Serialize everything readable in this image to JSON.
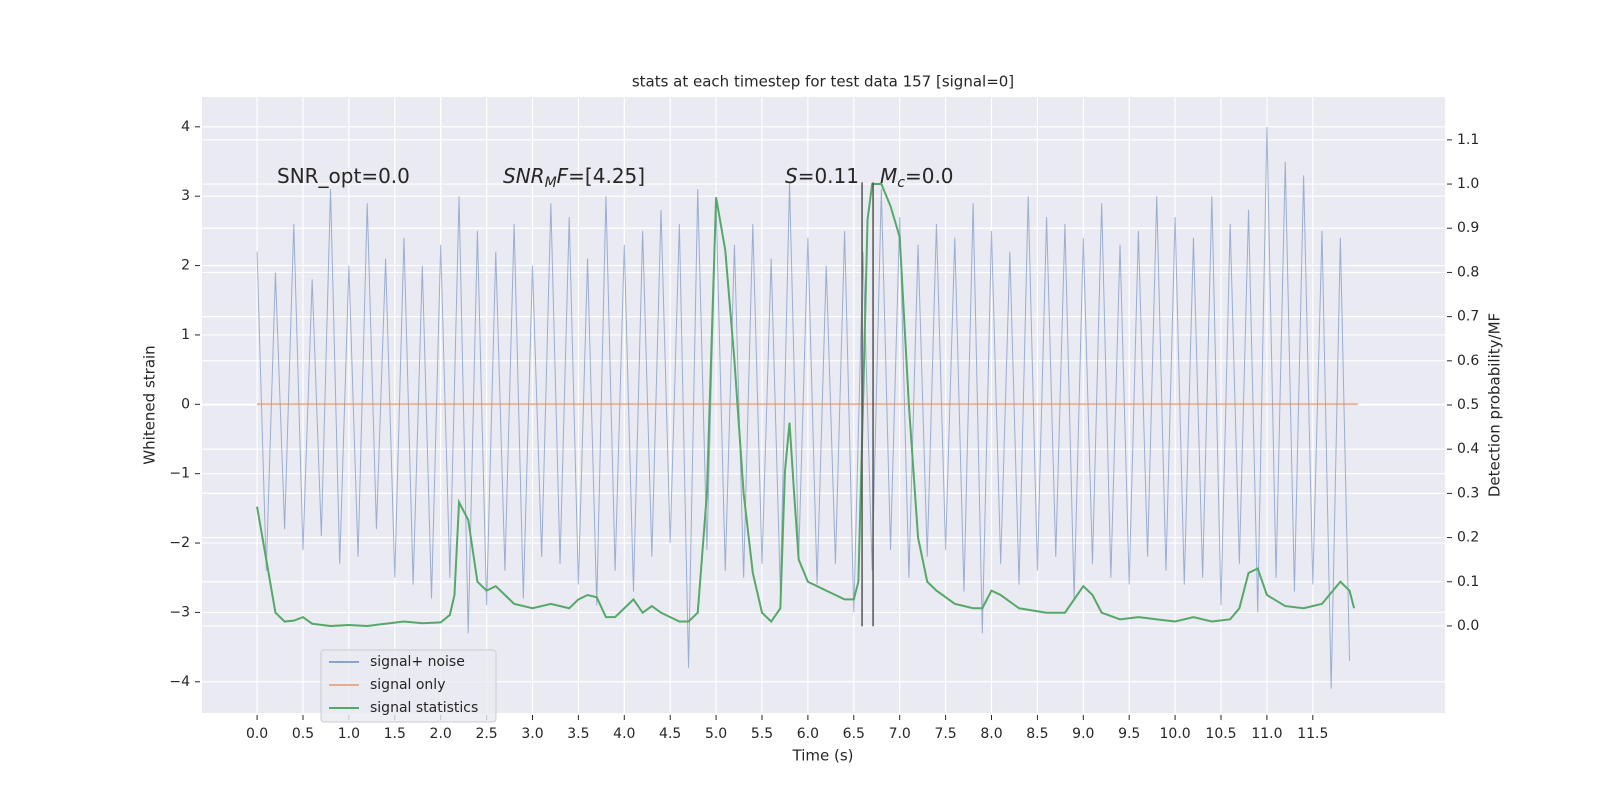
{
  "chart_data": {
    "type": "line",
    "title": "stats at each timestep for test data 157 [signal=0]",
    "xlabel": "Time (s)",
    "ylabel": "Whitened strain",
    "y2label": "Detection probability/MF",
    "annotations": [
      [
        "SNR_opt=0.0"
      ],
      [
        "SNR",
        "M",
        "F",
        "=[4.25]"
      ],
      [
        "S",
        "=0.11"
      ],
      [
        "M",
        "c",
        "=0.0"
      ]
    ],
    "xlim": [
      -0.6,
      12.94
    ],
    "ylim": [
      -4.45,
      4.43
    ],
    "y2lim": [
      -0.197,
      1.197
    ],
    "xticks": [
      {
        "value": 0,
        "label": "0.0"
      },
      {
        "value": 0.5,
        "label": "0.5"
      },
      {
        "value": 1,
        "label": "1.0"
      },
      {
        "value": 1.5,
        "label": "1.5"
      },
      {
        "value": 2,
        "label": "2.0"
      },
      {
        "value": 2.5,
        "label": "2.5"
      },
      {
        "value": 3,
        "label": "3.0"
      },
      {
        "value": 3.5,
        "label": "3.5"
      },
      {
        "value": 4,
        "label": "4.0"
      },
      {
        "value": 4.5,
        "label": "4.5"
      },
      {
        "value": 5,
        "label": "5.0"
      },
      {
        "value": 5.5,
        "label": "5.5"
      },
      {
        "value": 6,
        "label": "6.0"
      },
      {
        "value": 6.5,
        "label": "6.5"
      },
      {
        "value": 7,
        "label": "7.0"
      },
      {
        "value": 7.5,
        "label": "7.5"
      },
      {
        "value": 8,
        "label": "8.0"
      },
      {
        "value": 8.5,
        "label": "8.5"
      },
      {
        "value": 9,
        "label": "9.0"
      },
      {
        "value": 9.5,
        "label": "9.5"
      },
      {
        "value": 10,
        "label": "10.0"
      },
      {
        "value": 10.5,
        "label": "10.5"
      },
      {
        "value": 11,
        "label": "11.0"
      },
      {
        "value": 11.5,
        "label": "11.5"
      }
    ],
    "yticks": [
      {
        "value": -4,
        "label": "−4"
      },
      {
        "value": -3,
        "label": "−3"
      },
      {
        "value": -2,
        "label": "−2"
      },
      {
        "value": -1,
        "label": "−1"
      },
      0,
      1,
      2,
      3,
      4
    ],
    "y2ticks": [
      {
        "value": 0,
        "label": "0.0"
      },
      {
        "value": 0.1,
        "label": "0.1"
      },
      {
        "value": 0.2,
        "label": "0.2"
      },
      {
        "value": 0.3,
        "label": "0.3"
      },
      {
        "value": 0.4,
        "label": "0.4"
      },
      {
        "value": 0.5,
        "label": "0.5"
      },
      {
        "value": 0.6,
        "label": "0.6"
      },
      {
        "value": 0.7,
        "label": "0.7"
      },
      {
        "value": 0.8,
        "label": "0.8"
      },
      {
        "value": 0.9,
        "label": "0.9"
      },
      {
        "value": 1,
        "label": "1.0"
      },
      {
        "value": 1.1,
        "label": "1.1"
      }
    ],
    "grid": true,
    "legend": "lower left",
    "series": [
      {
        "name": "signal+ noise",
        "color": "#4c72b0",
        "x": [
          0,
          0.1,
          0.2,
          0.3,
          0.4,
          0.5,
          0.6,
          0.7,
          0.8,
          0.9,
          1,
          1.1,
          1.2,
          1.3,
          1.4,
          1.5,
          1.6,
          1.7,
          1.8,
          1.9,
          2,
          2.1,
          2.2,
          2.3,
          2.4,
          2.5,
          2.6,
          2.7,
          2.8,
          2.9,
          3,
          3.1,
          3.2,
          3.3,
          3.4,
          3.5,
          3.6,
          3.7,
          3.8,
          3.9,
          4,
          4.1,
          4.2,
          4.3,
          4.4,
          4.5,
          4.6,
          4.7,
          4.8,
          4.9,
          5,
          5.1,
          5.2,
          5.3,
          5.4,
          5.5,
          5.6,
          5.7,
          5.8,
          5.9,
          6,
          6.1,
          6.2,
          6.3,
          6.4,
          6.5,
          6.6,
          6.7,
          6.8,
          6.9,
          7,
          7.1,
          7.2,
          7.3,
          7.4,
          7.5,
          7.6,
          7.7,
          7.8,
          7.9,
          8,
          8.1,
          8.2,
          8.3,
          8.4,
          8.5,
          8.6,
          8.7,
          8.8,
          8.9,
          9,
          9.1,
          9.2,
          9.3,
          9.4,
          9.5,
          9.6,
          9.7,
          9.8,
          9.9,
          10,
          10.1,
          10.2,
          10.3,
          10.4,
          10.5,
          10.6,
          10.7,
          10.8,
          10.9,
          11,
          11.1,
          11.2,
          11.3,
          11.4,
          11.5,
          11.6,
          11.7,
          11.8,
          11.9
        ],
        "values": [
          2.2,
          -2.4,
          1.9,
          -1.8,
          2.6,
          -2.1,
          1.8,
          -1.9,
          3.1,
          -2.3,
          2.0,
          -2.2,
          2.9,
          -1.8,
          2.1,
          -2.5,
          2.4,
          -2.6,
          2.0,
          -2.8,
          2.3,
          -2.5,
          3.0,
          -3.3,
          2.5,
          -2.9,
          2.2,
          -2.4,
          2.6,
          -2.8,
          2.0,
          -2.2,
          2.9,
          -2.3,
          2.7,
          -2.6,
          2.1,
          -2.9,
          3.0,
          -2.4,
          2.3,
          -2.7,
          2.5,
          -2.2,
          2.8,
          -2.0,
          2.6,
          -3.8,
          3.1,
          -2.1,
          2.9,
          -2.4,
          2.3,
          -2.5,
          2.6,
          -2.3,
          2.1,
          -2.7,
          3.2,
          -2.2,
          2.4,
          -2.6,
          2.0,
          -2.3,
          2.5,
          -3.0,
          2.2,
          -2.4,
          3.1,
          -2.1,
          2.7,
          -2.5,
          2.3,
          -2.2,
          2.6,
          -2.1,
          2.4,
          -2.7,
          2.9,
          -3.3,
          2.5,
          -2.3,
          2.2,
          -2.6,
          3.0,
          -2.4,
          2.7,
          -2.2,
          2.6,
          -2.8,
          2.4,
          -2.3,
          2.9,
          -2.5,
          2.3,
          -2.6,
          2.5,
          -2.2,
          3.0,
          -2.4,
          2.7,
          -2.6,
          2.4,
          -2.5,
          3.0,
          -2.9,
          2.6,
          -2.3,
          2.8,
          -3.0,
          4.0,
          -2.5,
          3.5,
          -2.7,
          3.3,
          -2.6,
          2.5,
          -4.1,
          2.4,
          -3.7
        ]
      },
      {
        "name": "signal only",
        "color": "#dd8452",
        "x": [
          0,
          11.99
        ],
        "values": [
          0,
          0
        ]
      },
      {
        "name": "signal statistics",
        "color": "#55a868",
        "axis": "y2",
        "x": [
          0,
          0.1,
          0.2,
          0.3,
          0.4,
          0.5,
          0.6,
          0.8,
          1,
          1.2,
          1.4,
          1.6,
          1.8,
          2,
          2.1,
          2.15,
          2.2,
          2.3,
          2.4,
          2.5,
          2.6,
          2.7,
          2.8,
          3,
          3.2,
          3.4,
          3.5,
          3.6,
          3.7,
          3.8,
          3.9,
          4,
          4.1,
          4.2,
          4.3,
          4.4,
          4.5,
          4.6,
          4.7,
          4.8,
          4.9,
          5,
          5.1,
          5.2,
          5.3,
          5.4,
          5.5,
          5.6,
          5.7,
          5.75,
          5.8,
          5.85,
          5.9,
          6,
          6.2,
          6.4,
          6.5,
          6.55,
          6.6,
          6.65,
          6.7,
          6.8,
          6.9,
          7,
          7.1,
          7.2,
          7.3,
          7.4,
          7.6,
          7.8,
          7.9,
          8,
          8.1,
          8.3,
          8.6,
          8.8,
          9,
          9.1,
          9.2,
          9.4,
          9.6,
          9.8,
          10,
          10.2,
          10.4,
          10.6,
          10.7,
          10.8,
          10.9,
          11,
          11.2,
          11.4,
          11.6,
          11.8,
          11.9,
          11.95
        ],
        "values": [
          0.27,
          0.15,
          0.03,
          0.01,
          0.012,
          0.02,
          0.005,
          0,
          0.002,
          0,
          0.005,
          0.01,
          0.006,
          0.008,
          0.025,
          0.07,
          0.28,
          0.24,
          0.1,
          0.08,
          0.09,
          0.07,
          0.05,
          0.04,
          0.05,
          0.04,
          0.06,
          0.07,
          0.065,
          0.02,
          0.02,
          0.04,
          0.06,
          0.03,
          0.045,
          0.03,
          0.02,
          0.01,
          0.01,
          0.03,
          0.3,
          0.97,
          0.85,
          0.6,
          0.3,
          0.12,
          0.03,
          0.01,
          0.04,
          0.35,
          0.46,
          0.3,
          0.15,
          0.1,
          0.08,
          0.06,
          0.06,
          0.1,
          0.5,
          0.92,
          1.0,
          1.0,
          0.95,
          0.88,
          0.5,
          0.2,
          0.1,
          0.08,
          0.05,
          0.04,
          0.04,
          0.08,
          0.07,
          0.04,
          0.03,
          0.03,
          0.09,
          0.07,
          0.03,
          0.015,
          0.02,
          0.015,
          0.01,
          0.02,
          0.01,
          0.015,
          0.04,
          0.12,
          0.13,
          0.07,
          0.045,
          0.04,
          0.05,
          0.1,
          0.08,
          0.04
        ]
      }
    ],
    "vlines": {
      "color": "#555555",
      "x": [
        6.59,
        6.71
      ],
      "y": [
        -3.2,
        3.2
      ]
    }
  }
}
